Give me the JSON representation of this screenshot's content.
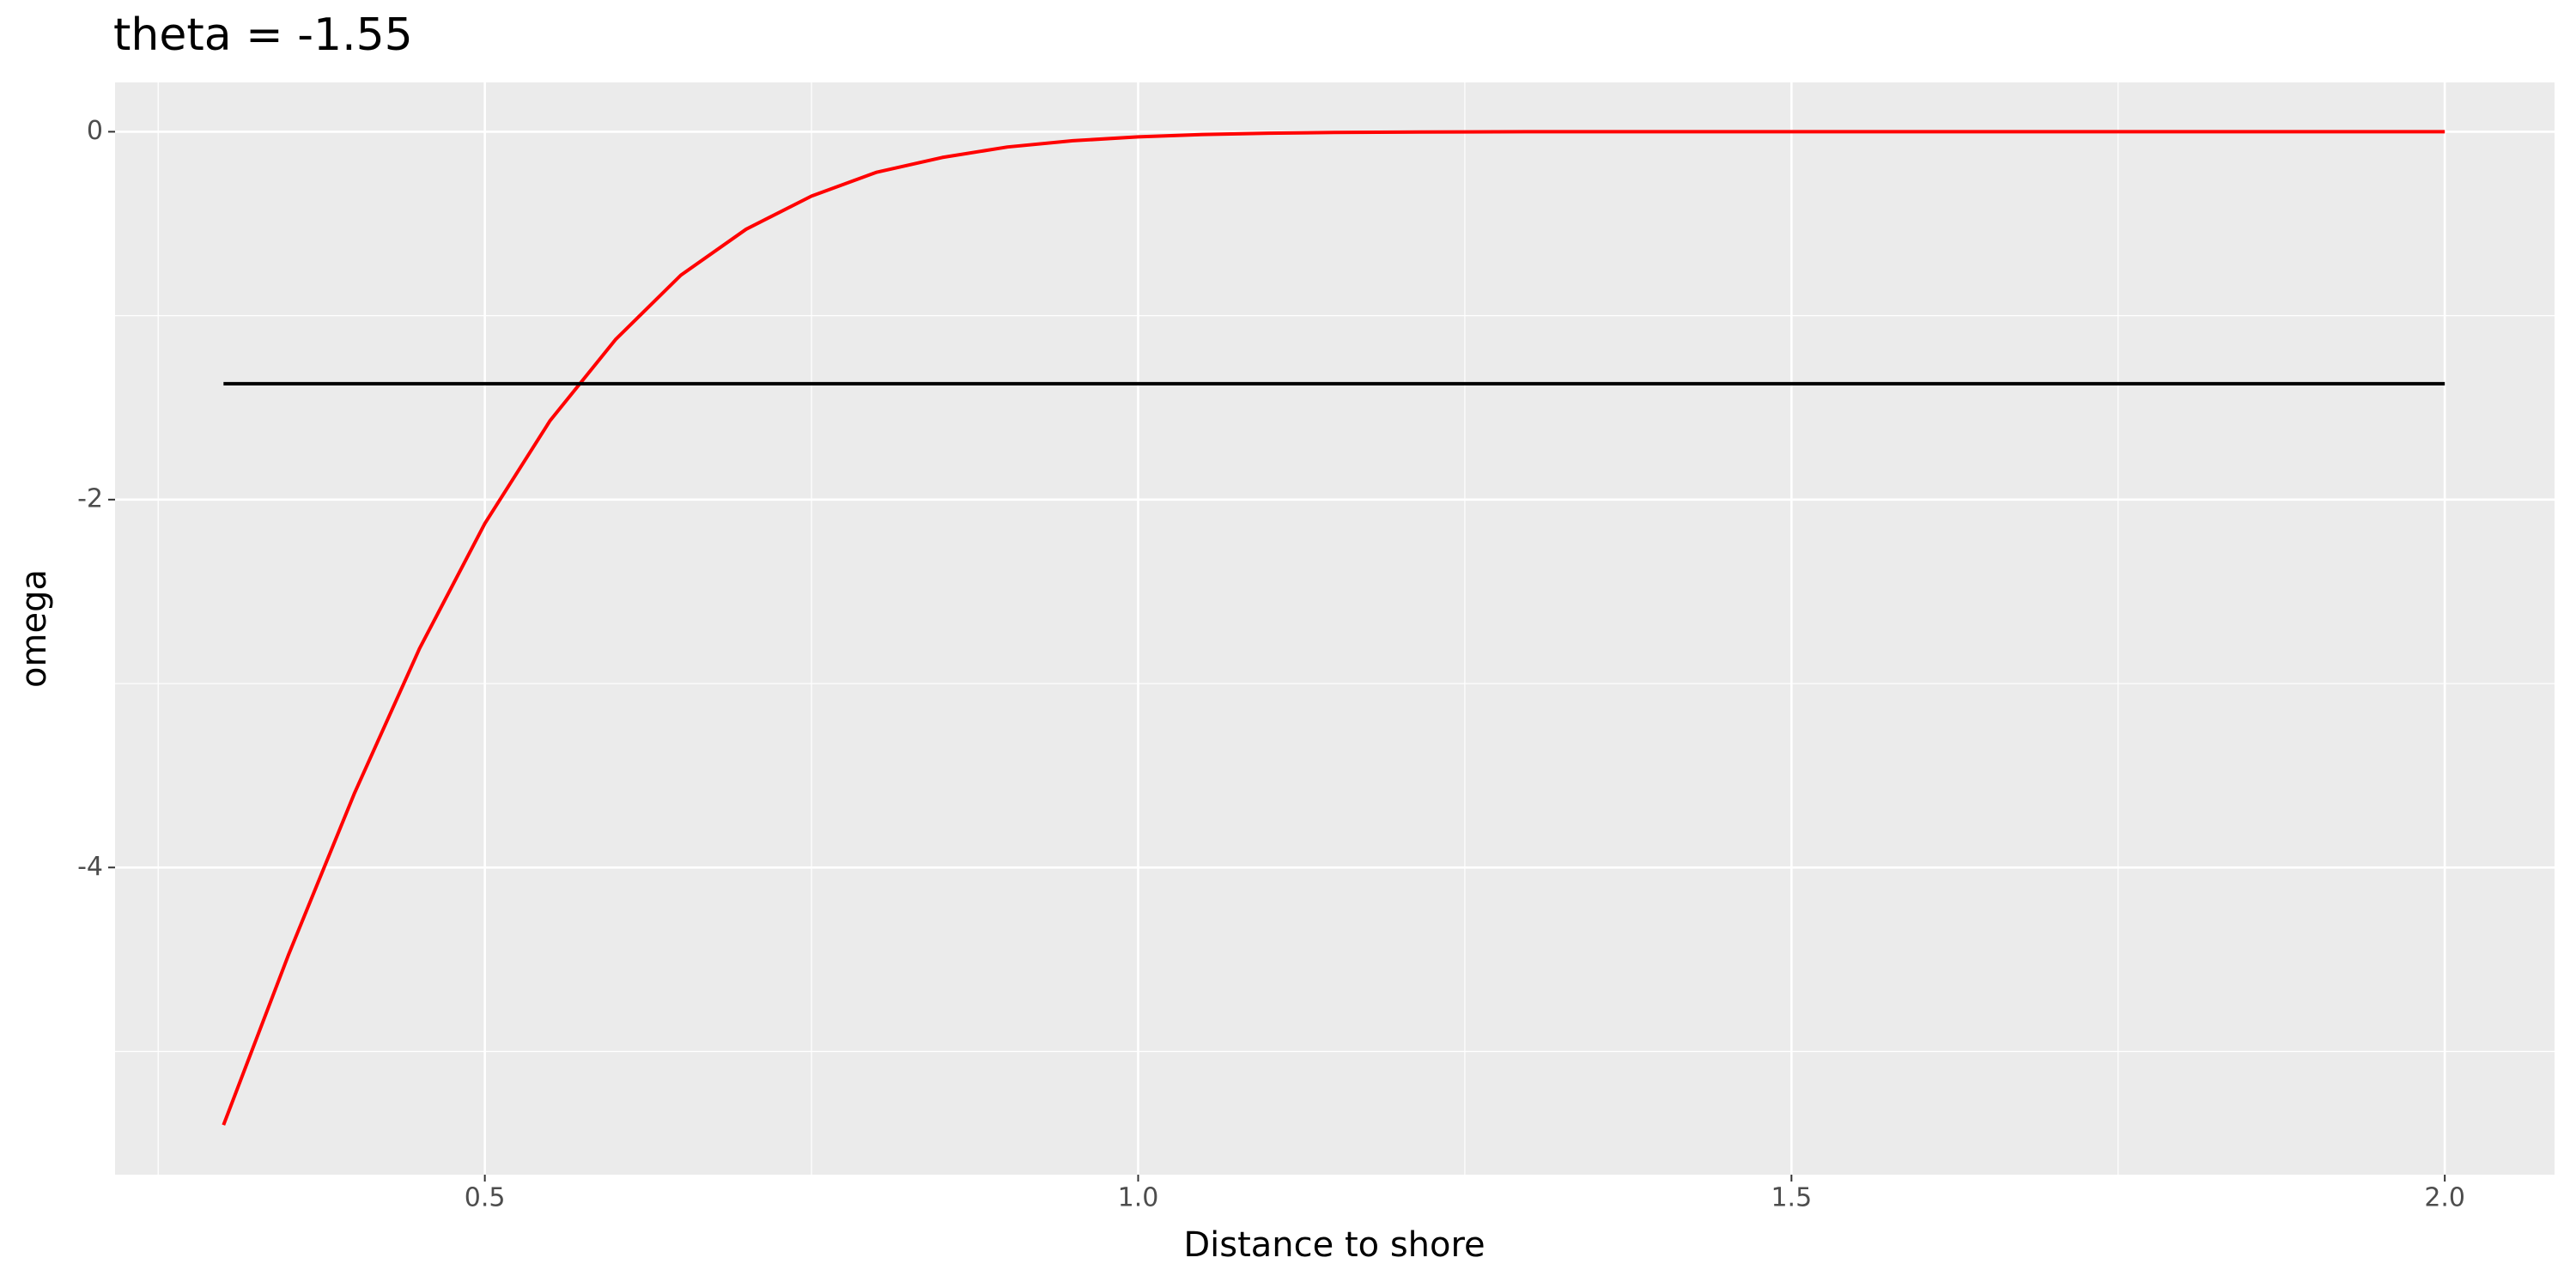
{
  "chart_data": {
    "type": "line",
    "title": "theta = -1.55",
    "x_label": "Distance to shore",
    "y_label": "omega",
    "xlim": [
      0.217,
      2.084
    ],
    "ylim": [
      -5.67,
      0.268
    ],
    "xticks": [
      0.5,
      {
        "value": 1,
        "label": "1.0"
      },
      1.5,
      {
        "value": 2,
        "label": "2.0"
      }
    ],
    "yticks": [
      0,
      -2,
      -4
    ],
    "grid": true,
    "series": [
      {
        "color": "#ff0000",
        "x": [
          0.3,
          0.35,
          0.4,
          0.45,
          0.5,
          0.55,
          0.6,
          0.65,
          0.7,
          0.75,
          0.8,
          0.85,
          0.9,
          0.95,
          1.0,
          1.05,
          1.1,
          1.15,
          1.2,
          1.25,
          1.3,
          1.35,
          1.4,
          1.45,
          1.5,
          1.55,
          1.6,
          1.65,
          1.7,
          1.75,
          1.8,
          1.85,
          1.9,
          1.95,
          2.0
        ],
        "values": [
          -5.4,
          -4.47,
          -3.6,
          -2.81,
          -2.13,
          -1.57,
          -1.13,
          -0.78,
          -0.53,
          -0.35,
          -0.22,
          -0.14,
          -0.083,
          -0.049,
          -0.028,
          -0.015,
          -0.008,
          -0.004,
          -0.002,
          -0.001,
          0,
          0,
          0,
          0,
          0,
          0,
          0,
          0,
          0,
          0,
          0,
          0,
          0,
          0,
          0
        ]
      },
      {
        "color": "#000000",
        "x": [
          0.3,
          2.0
        ],
        "values": [
          -1.37,
          -1.37
        ]
      }
    ]
  }
}
